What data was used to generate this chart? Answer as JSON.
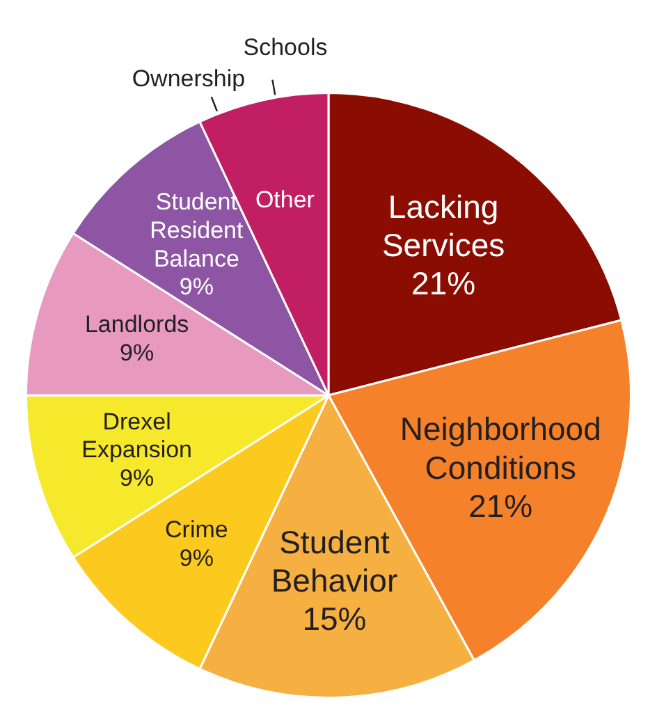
{
  "chart_data": {
    "type": "pie",
    "categories": [
      "Lacking Services",
      "Neighborhood Conditions",
      "Student Behavior",
      "Crime",
      "Drexel Expansion",
      "Landlords",
      "Student Resident Balance",
      "Other"
    ],
    "values": [
      21,
      21,
      15,
      9,
      9,
      9,
      9,
      7
    ],
    "value_labels": [
      "21%",
      "21%",
      "15%",
      "9%",
      "9%",
      "9%",
      "9%",
      null
    ],
    "colors": [
      "#8b0d02",
      "#f5822a",
      "#f6b042",
      "#fcca1e",
      "#f6e82a",
      "#e899bf",
      "#8d55a3",
      "#c11e63"
    ],
    "annotations": [
      "Ownership",
      "Schools"
    ],
    "legend": false
  }
}
